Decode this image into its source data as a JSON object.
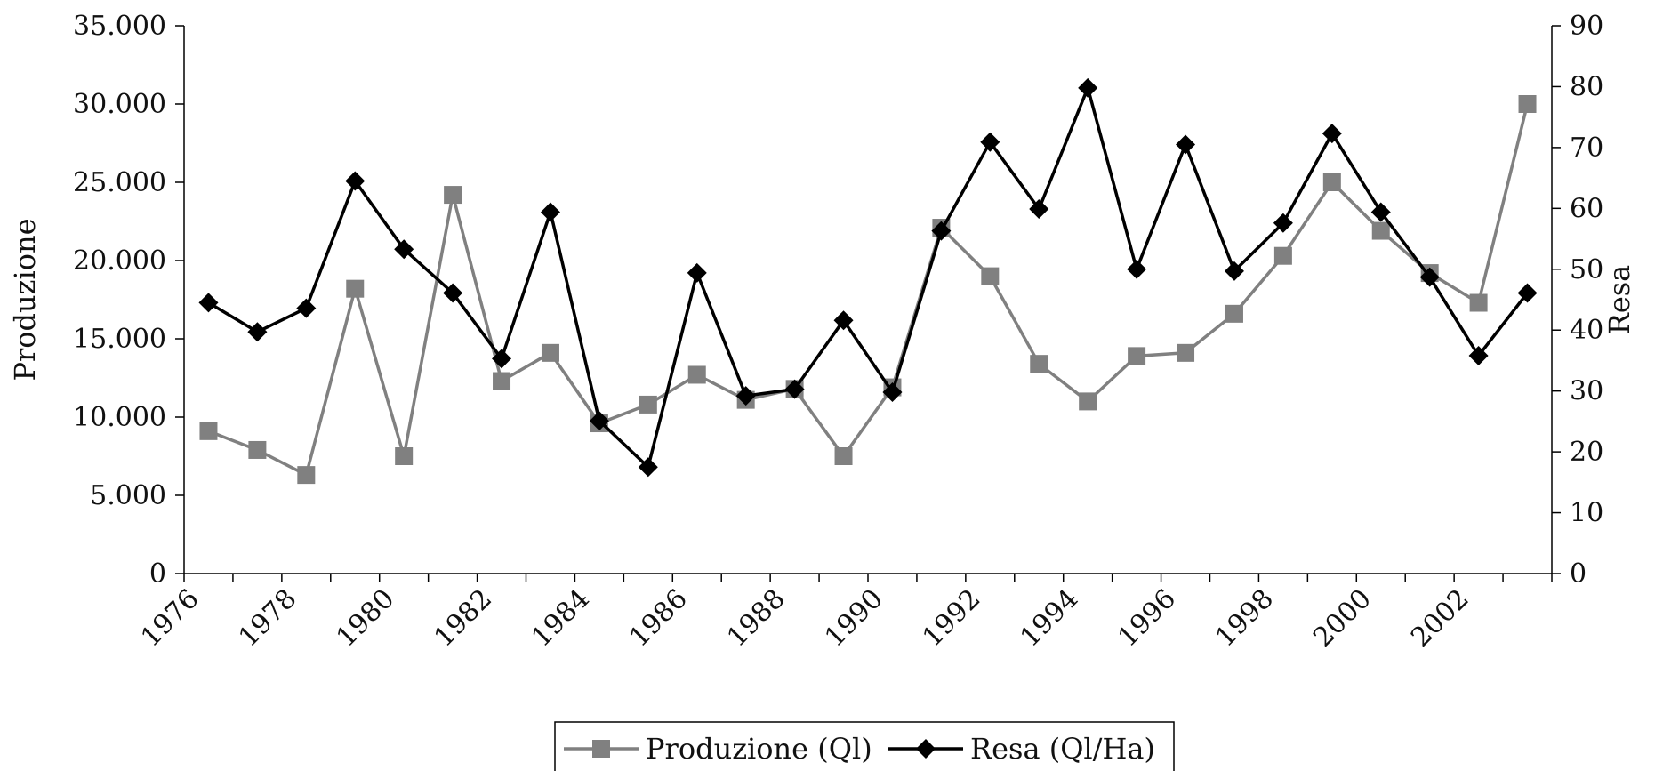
{
  "chart_data": {
    "type": "line",
    "title": "",
    "x": [
      1976.5,
      1977.5,
      1978.5,
      1979.5,
      1980.5,
      1981.5,
      1982.5,
      1983.5,
      1984.5,
      1985.5,
      1986.5,
      1987.5,
      1988.5,
      1989.5,
      1990.5,
      1991.5,
      1992.5,
      1993.5,
      1994.5,
      1995.5,
      1996.5,
      1997.5,
      1998.5,
      1999.5,
      2000.5,
      2001.5,
      2002.5,
      2003.5
    ],
    "xlim": [
      1976,
      2004
    ],
    "x_tick_labels": [
      "1976",
      "1978",
      "1980",
      "1982",
      "1984",
      "1986",
      "1988",
      "1990",
      "1992",
      "1994",
      "1996",
      "1998",
      "2000",
      "2002"
    ],
    "ylabel": "Produzione",
    "y2label": "Resa",
    "ylim": [
      0,
      35000
    ],
    "y2lim": [
      0,
      90
    ],
    "y_tick_labels": [
      "0",
      "5.000",
      "10.000",
      "15.000",
      "20.000",
      "25.000",
      "30.000",
      "35.000"
    ],
    "y2_tick_labels": [
      "0",
      "10",
      "20",
      "30",
      "40",
      "50",
      "60",
      "70",
      "80",
      "90"
    ],
    "legend_position": "bottom",
    "series": [
      {
        "name": "Produzione (Ql)",
        "axis": "left",
        "marker": "square",
        "color": "#808080",
        "values": [
          9100,
          7900,
          6300,
          18200,
          7500,
          24200,
          12300,
          14100,
          9600,
          10800,
          12700,
          11100,
          11800,
          7500,
          11900,
          22100,
          19000,
          13400,
          11000,
          13900,
          14100,
          16600,
          20300,
          25000,
          21900,
          19200,
          17300,
          30000
        ]
      },
      {
        "name": "Resa (Ql/Ha)",
        "axis": "right",
        "marker": "diamond",
        "color": "#000000",
        "values": [
          44.5,
          39.7,
          43.6,
          64.5,
          53.3,
          46.1,
          35.3,
          59.4,
          25.1,
          17.5,
          49.4,
          29.2,
          30.3,
          41.6,
          29.8,
          56.3,
          70.9,
          59.9,
          79.8,
          50.0,
          70.5,
          49.7,
          57.6,
          72.3,
          59.4,
          48.7,
          35.8,
          46.1
        ]
      }
    ]
  }
}
